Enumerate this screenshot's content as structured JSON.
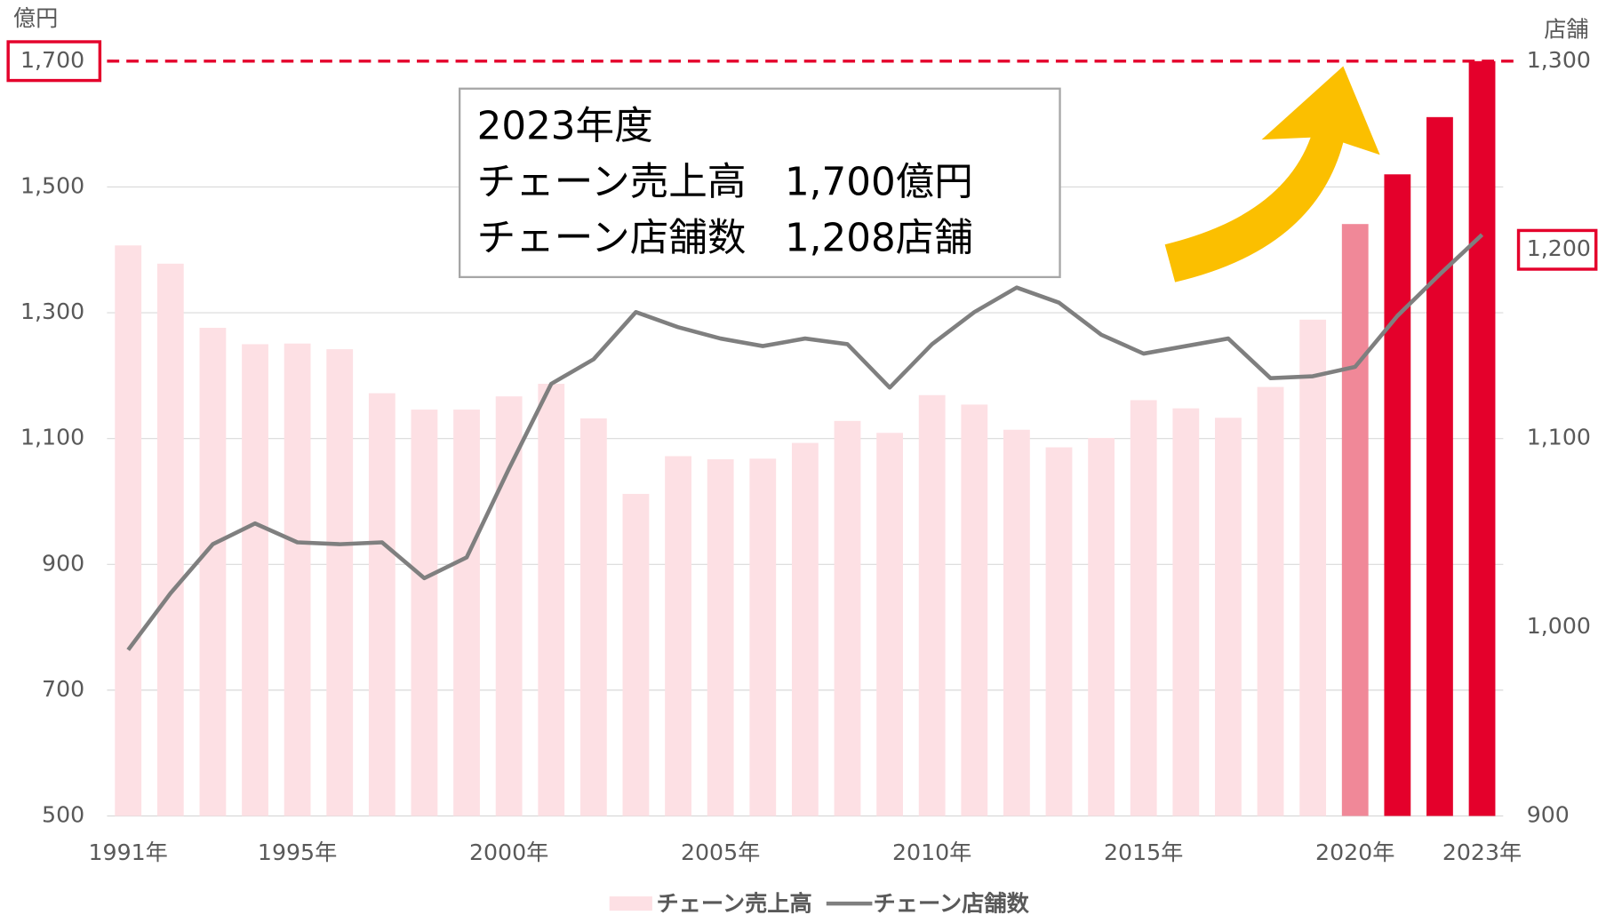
{
  "chart_data": {
    "type": "bar_line",
    "y_unit": "億円",
    "y2_unit": "店舗",
    "annotation": [
      "2023年度",
      "チェーン売上高　1,700億円",
      "チェーン店舗数　1,208店舗"
    ],
    "categories": [
      "1991年",
      null,
      null,
      null,
      "1995年",
      null,
      null,
      null,
      null,
      "2000年",
      null,
      null,
      null,
      null,
      "2005年",
      null,
      null,
      null,
      null,
      "2010年",
      null,
      null,
      null,
      null,
      "2015年",
      null,
      null,
      null,
      null,
      "2020年",
      null,
      null,
      "2023年"
    ],
    "series": [
      {
        "name": "チェーン売上高",
        "type": "bar",
        "color": "#fde0e4",
        "colors": [
          "#fde0e4",
          "#fde0e4",
          "#fde0e4",
          "#fde0e4",
          "#fde0e4",
          "#fde0e4",
          "#fde0e4",
          "#fde0e4",
          "#fde0e4",
          "#fde0e4",
          "#fde0e4",
          "#fde0e4",
          "#fde0e4",
          "#fde0e4",
          "#fde0e4",
          "#fde0e4",
          "#fde0e4",
          "#fde0e4",
          "#fde0e4",
          "#fde0e4",
          "#fde0e4",
          "#fde0e4",
          "#fde0e4",
          "#fde0e4",
          "#fde0e4",
          "#fde0e4",
          "#fde0e4",
          "#fde0e4",
          "#fde0e4",
          "#f08898",
          "#e4002b",
          "#e4002b",
          "#e4002b"
        ],
        "values": [
          1407,
          1378,
          1276,
          1250,
          1251,
          1242,
          1172,
          1146,
          1146,
          1167,
          1187,
          1132,
          1012,
          1072,
          1067,
          1068,
          1093,
          1128,
          1109,
          1169,
          1154,
          1114,
          1086,
          1101,
          1161,
          1148,
          1133,
          1182,
          1289,
          1441,
          1520,
          1611,
          1700
        ]
      },
      {
        "name": "チェーン店舗数",
        "type": "line",
        "axis": "y2",
        "color": "#7f7f7f",
        "values": [
          988,
          1018,
          1044,
          1055,
          1045,
          1044,
          1045,
          1026,
          1037,
          1084,
          1129,
          1142,
          1167,
          1159,
          1153,
          1149,
          1153,
          1150,
          1127,
          1150,
          1167,
          1180,
          1172,
          1155,
          1145,
          1149,
          1153,
          1132,
          1133,
          1138,
          1165,
          1187,
          1208
        ]
      }
    ],
    "ylim": [
      500,
      1700
    ],
    "yticks": [
      500,
      700,
      900,
      {
        "value": 1100,
        "label": "1,100"
      },
      {
        "value": 1300,
        "label": "1,300"
      },
      {
        "value": 1500,
        "label": "1,500"
      },
      {
        "value": 1700,
        "label": "1,700",
        "highlight": true
      }
    ],
    "y2lim": [
      900,
      1300
    ],
    "y2ticks": [
      900,
      {
        "value": 1000,
        "label": "1,000"
      },
      {
        "value": 1100,
        "label": "1,100"
      },
      {
        "value": 1200,
        "label": "1,200",
        "highlight": true
      },
      {
        "value": 1300,
        "label": "1,300"
      }
    ],
    "highlight_color": "#e4002b",
    "grid": true
  }
}
